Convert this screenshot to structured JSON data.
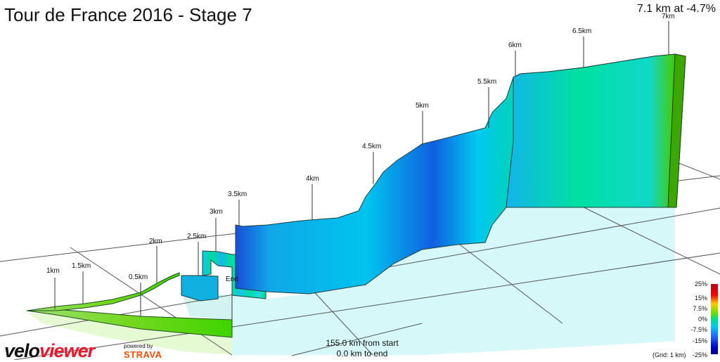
{
  "header": {
    "title": "Tour de France 2016 - Stage 7",
    "segment_info": "7.1 km at -4.7%"
  },
  "profile": {
    "km_markers": [
      "0.5km",
      "1km",
      "1.5km",
      "2km",
      "2.5km",
      "3km",
      "3.5km",
      "4km",
      "4.5km",
      "5km",
      "5.5km",
      "6km",
      "6.5km",
      "7km"
    ],
    "end_marker": "End"
  },
  "footer": {
    "from_start": "155.0 km from start",
    "to_end": "0.0 km to end"
  },
  "legend": {
    "scale_labels": [
      "25%",
      "15%",
      "7.5%",
      "0%",
      "-7.5%",
      "-15%",
      "-25%"
    ],
    "grid_note": "(Grid: 1 km)"
  },
  "branding": {
    "logo_part1": "velo",
    "logo_part2": "viewer",
    "powered_by": "powered by",
    "strava": "STRAVA"
  },
  "colors": {
    "grade_cyan": "#00d2f0",
    "grade_green": "#00e08c",
    "grade_blue": "#1060e0",
    "grade_lime": "#50c800",
    "ground_fill": "#c8f5f5",
    "grid_line": "#555555",
    "brand_red": "#e8182c",
    "strava_orange": "#fc4c02"
  }
}
